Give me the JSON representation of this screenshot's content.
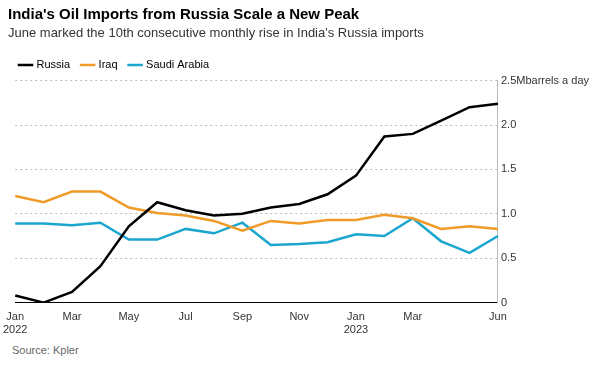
{
  "chart_data": {
    "type": "line",
    "title": "India's Oil Imports from Russia Scale a New Peak",
    "subtitle": "June marked the 10th consecutive monthly rise in India's Russia imports",
    "source": "Source: Kpler",
    "categories": [
      "Jan 2022",
      null,
      "Mar",
      null,
      "May",
      null,
      "Jul",
      null,
      "Sep",
      null,
      "Nov",
      null,
      "Jan 2023",
      null,
      "Mar",
      null,
      null,
      "Jun"
    ],
    "series": [
      {
        "name": "Russia",
        "color": "#000000",
        "values": [
          0.08,
          0.0,
          0.12,
          0.41,
          0.86,
          1.13,
          1.04,
          0.98,
          1.0,
          1.07,
          1.11,
          1.22,
          1.43,
          1.87,
          1.9,
          2.05,
          2.2,
          2.24
        ]
      },
      {
        "name": "Iraq",
        "color": "#f09a28",
        "values": [
          1.2,
          1.13,
          1.25,
          1.25,
          1.07,
          1.01,
          0.98,
          0.92,
          0.81,
          0.92,
          0.89,
          0.93,
          0.93,
          0.99,
          0.95,
          0.83,
          0.86,
          0.83
        ]
      },
      {
        "name": "Saudi Arabia",
        "color": "#1ba6cf",
        "values": [
          0.89,
          0.89,
          0.87,
          0.9,
          0.71,
          0.71,
          0.83,
          0.78,
          0.9,
          0.65,
          0.66,
          0.68,
          0.77,
          0.75,
          0.95,
          0.69,
          0.56,
          0.75
        ]
      }
    ],
    "ylim": [
      0,
      2.5
    ],
    "yticks": [
      0,
      0.5,
      {
        "value": 1,
        "label": "1.0"
      },
      1.5,
      {
        "value": 2,
        "label": "2.0"
      },
      {
        "value": 2.5,
        "label": "2.5Mbarrels a day"
      }
    ],
    "grid": true,
    "legend": "top-left"
  }
}
